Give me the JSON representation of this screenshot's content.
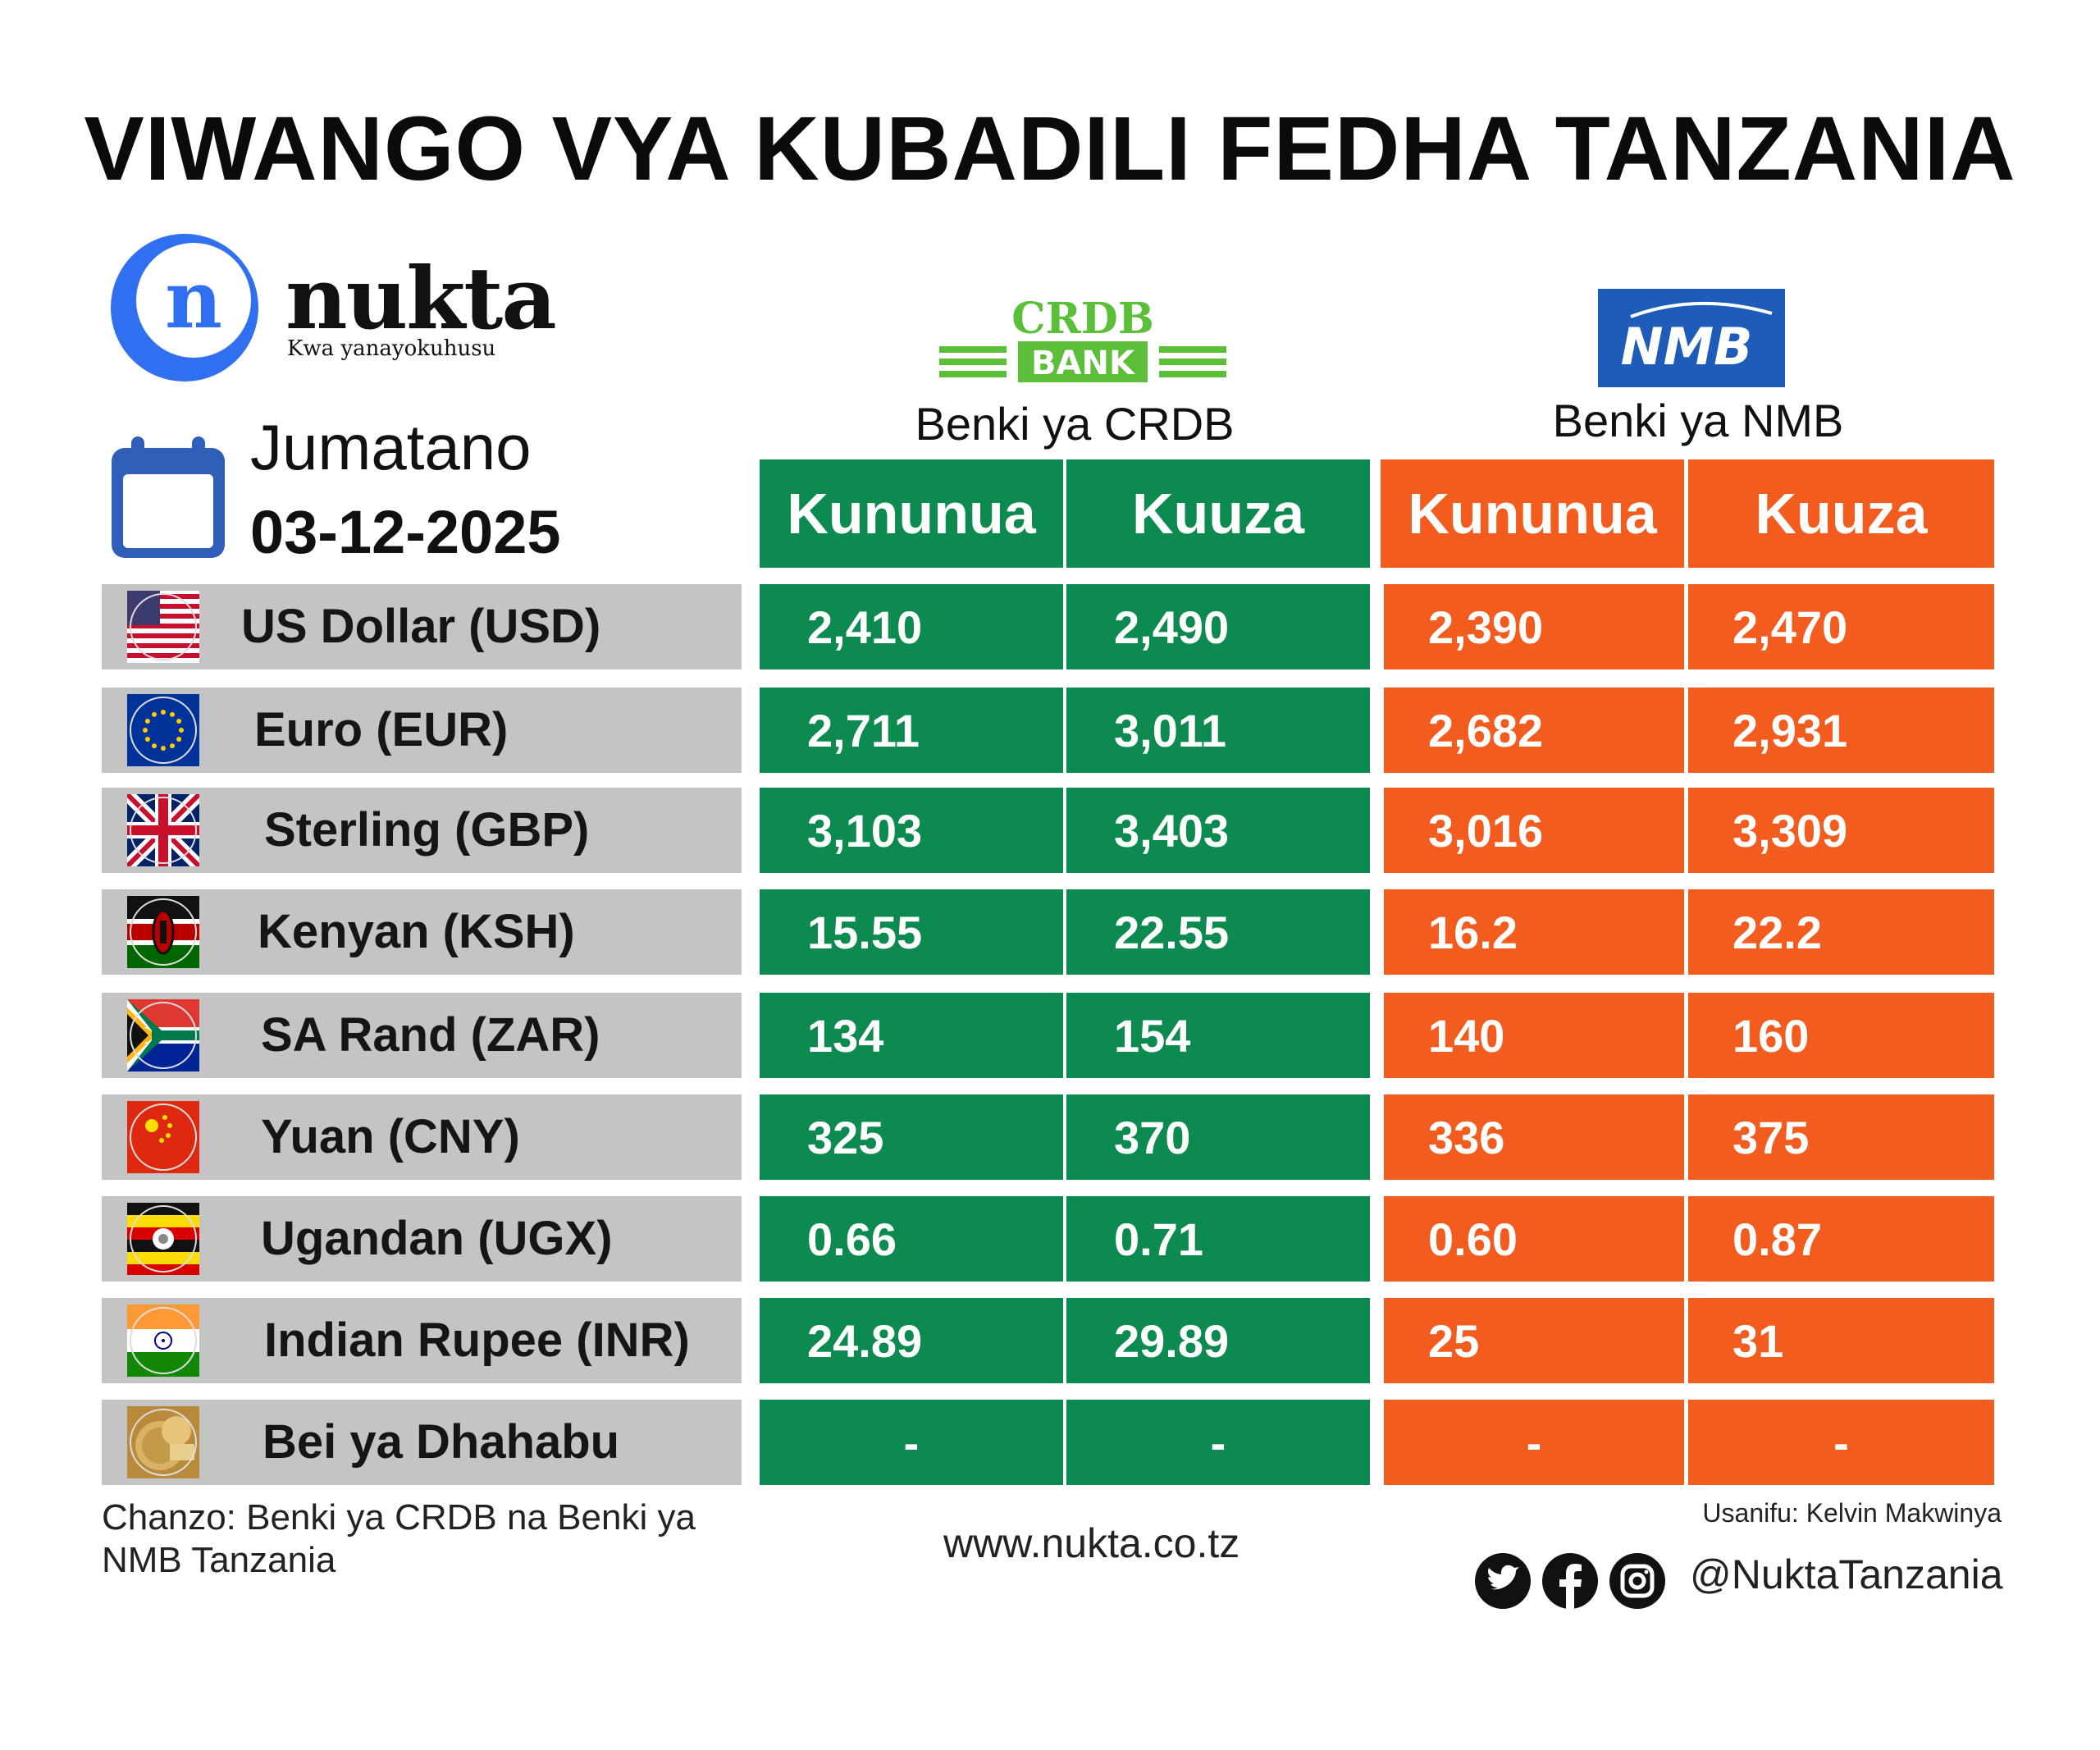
{
  "title": "VIWANGO VYA KUBADILI FEDHA TANZANIA",
  "brand": {
    "logo_letter": "n",
    "name": "nukta",
    "tagline": "Kwa yanayokuhusu"
  },
  "date_block": {
    "day": "Jumatano",
    "date": "03-12-2025"
  },
  "banks": {
    "crdb": {
      "logo_top": "CRDB",
      "logo_bottom": "BANK",
      "name": "Benki ya CRDB",
      "buy_label": "Kununua",
      "sell_label": "Kuuza",
      "color": "#0d8a50"
    },
    "nmb": {
      "logo_text": "NMB",
      "name": "Benki ya NMB",
      "buy_label": "Kununua",
      "sell_label": "Kuuza",
      "color": "#f35c1f"
    }
  },
  "rows": [
    {
      "label": "US Dollar (USD)",
      "flag": "usa-flag-icon",
      "crdb_buy": "2,410",
      "crdb_sell": "2,490",
      "nmb_buy": "2,390",
      "nmb_sell": "2,470"
    },
    {
      "label": "Euro (EUR)",
      "flag": "eu-flag-icon",
      "crdb_buy": "2,711",
      "crdb_sell": "3,011",
      "nmb_buy": "2,682",
      "nmb_sell": "2,931"
    },
    {
      "label": "Sterling (GBP)",
      "flag": "uk-flag-icon",
      "crdb_buy": "3,103",
      "crdb_sell": "3,403",
      "nmb_buy": "3,016",
      "nmb_sell": "3,309"
    },
    {
      "label": "Kenyan (KSH)",
      "flag": "kenya-flag-icon",
      "crdb_buy": "15.55",
      "crdb_sell": "22.55",
      "nmb_buy": "16.2",
      "nmb_sell": "22.2"
    },
    {
      "label": "SA Rand (ZAR)",
      "flag": "south-africa-flag-icon",
      "crdb_buy": "134",
      "crdb_sell": "154",
      "nmb_buy": "140",
      "nmb_sell": "160"
    },
    {
      "label": "Yuan (CNY)",
      "flag": "china-flag-icon",
      "crdb_buy": "325",
      "crdb_sell": "370",
      "nmb_buy": "336",
      "nmb_sell": "375"
    },
    {
      "label": "Ugandan (UGX)",
      "flag": "uganda-flag-icon",
      "crdb_buy": "0.66",
      "crdb_sell": "0.71",
      "nmb_buy": "0.60",
      "nmb_sell": "0.87"
    },
    {
      "label": "Indian Rupee (INR)",
      "flag": "india-flag-icon",
      "crdb_buy": "24.89",
      "crdb_sell": "29.89",
      "nmb_buy": "25",
      "nmb_sell": "31"
    },
    {
      "label": "Bei ya Dhahabu",
      "flag": "gold-coin-icon",
      "crdb_buy": "-",
      "crdb_sell": "-",
      "nmb_buy": "-",
      "nmb_sell": "-"
    }
  ],
  "footer": {
    "source": "Chanzo: Benki ya CRDB na Benki ya NMB Tanzania",
    "website": "www.nukta.co.tz",
    "designer": "Usanifu: Kelvin Makwinya",
    "handle": "@NuktaTanzania",
    "social_icons": [
      "twitter-icon",
      "facebook-icon",
      "instagram-icon"
    ]
  }
}
